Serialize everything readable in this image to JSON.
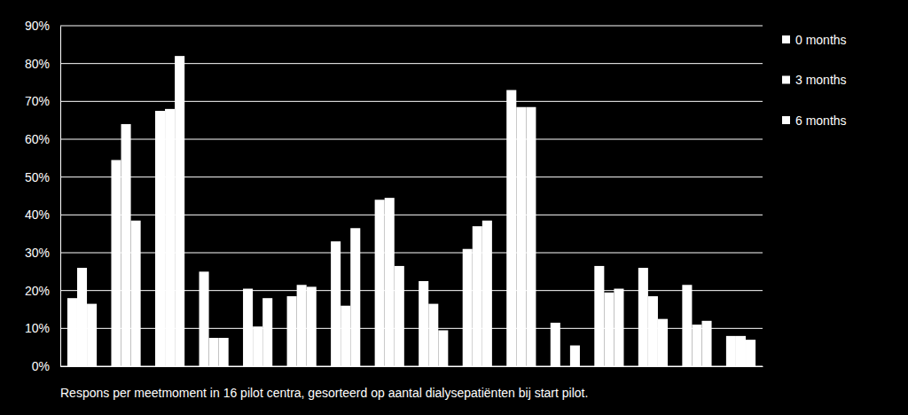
{
  "chart_data": {
    "type": "bar",
    "title": "Respons per meetmoment in 16 pilot centra, gesorteerd op aantal dialysepatiënten bij start pilot.",
    "categories": [
      null,
      null,
      null,
      null,
      null,
      null,
      null,
      null,
      null,
      null,
      null,
      null,
      null,
      null,
      null,
      null
    ],
    "series": [
      {
        "name": "0 months",
        "color": "#ffffff",
        "values": [
          18,
          54.5,
          67.5,
          25,
          20.5,
          18.5,
          33,
          44,
          22.5,
          31,
          73,
          11.5,
          26.5,
          26,
          21.5,
          8
        ]
      },
      {
        "name": "3 months",
        "color": "#ffffff",
        "values": [
          26,
          64,
          68,
          7.5,
          10.5,
          21.5,
          16,
          44.5,
          16.5,
          37,
          68.5,
          0,
          19.5,
          18.5,
          11,
          8
        ]
      },
      {
        "name": "6 months",
        "color": "#ffffff",
        "values": [
          16.5,
          38.5,
          82,
          7.5,
          18,
          21,
          36.5,
          26.5,
          9.5,
          38.5,
          68.5,
          5.5,
          20.5,
          12.5,
          12,
          7
        ]
      }
    ],
    "ylim": [
      0,
      90
    ],
    "yticks": [
      {
        "value": 0,
        "label": "0%"
      },
      {
        "value": 10,
        "label": "10%"
      },
      {
        "value": 20,
        "label": "20%"
      },
      {
        "value": 30,
        "label": "30%"
      },
      {
        "value": 40,
        "label": "40%"
      },
      {
        "value": 50,
        "label": "50%"
      },
      {
        "value": 60,
        "label": "60%"
      },
      {
        "value": 70,
        "label": "70%"
      },
      {
        "value": 80,
        "label": "80%"
      },
      {
        "value": 90,
        "label": "90%"
      }
    ],
    "grid": true,
    "legend": "right",
    "tick_labels": "y"
  }
}
